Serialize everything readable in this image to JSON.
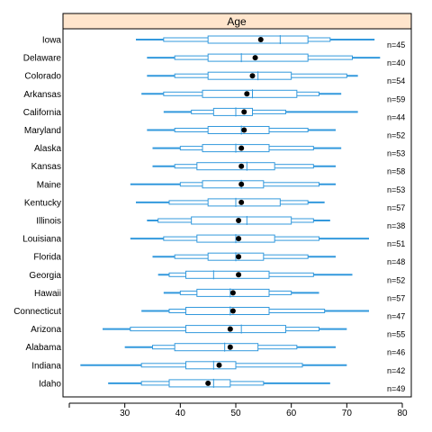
{
  "chart_data": {
    "type": "box",
    "title": "Age",
    "xlabel": "",
    "ylabel": "",
    "xlim": [
      20,
      80
    ],
    "xticks": [
      30,
      40,
      50,
      60,
      70,
      80
    ],
    "colors": {
      "strip": "#ffe5cc",
      "box": "#3399dd",
      "mean": "#000000"
    },
    "categories": [
      "Iowa",
      "Delaware",
      "Colorado",
      "Arkansas",
      "California",
      "Maryland",
      "Alaska",
      "Kansas",
      "Maine",
      "Kentucky",
      "Illinois",
      "Louisiana",
      "Florida",
      "Georgia",
      "Hawaii",
      "Connecticut",
      "Arizona",
      "Alabama",
      "Indiana",
      "Idaho"
    ],
    "n_labels": [
      "n=45",
      "n=40",
      "n=54",
      "n=59",
      "n=44",
      "n=52",
      "n=53",
      "n=58",
      "n=53",
      "n=57",
      "n=38",
      "n=51",
      "n=48",
      "n=52",
      "n=57",
      "n=47",
      "n=55",
      "n=46",
      "n=42",
      "n=49"
    ],
    "series": [
      {
        "category": "Iowa",
        "min": 32,
        "p10": 37,
        "q1": 45,
        "median": 58,
        "q3": 63,
        "p90": 67,
        "max": 75,
        "mean": 54.5
      },
      {
        "category": "Delaware",
        "min": 34,
        "p10": 39,
        "q1": 45,
        "median": 51,
        "q3": 63,
        "p90": 71,
        "max": 76,
        "mean": 53.5
      },
      {
        "category": "Colorado",
        "min": 34,
        "p10": 39,
        "q1": 45,
        "median": 54,
        "q3": 60,
        "p90": 70,
        "max": 72,
        "mean": 53
      },
      {
        "category": "Arkansas",
        "min": 33,
        "p10": 37,
        "q1": 44,
        "median": 53,
        "q3": 61,
        "p90": 65,
        "max": 69,
        "mean": 52
      },
      {
        "category": "California",
        "min": 37,
        "p10": 42,
        "q1": 46,
        "median": 50,
        "q3": 53,
        "p90": 59,
        "max": 72,
        "mean": 51.5
      },
      {
        "category": "Maryland",
        "min": 34,
        "p10": 39,
        "q1": 45,
        "median": 51,
        "q3": 56,
        "p90": 63,
        "max": 68,
        "mean": 51.5
      },
      {
        "category": "Alaska",
        "min": 35,
        "p10": 40,
        "q1": 44,
        "median": 50,
        "q3": 56,
        "p90": 64,
        "max": 69,
        "mean": 51
      },
      {
        "category": "Kansas",
        "min": 35,
        "p10": 39,
        "q1": 43,
        "median": 52,
        "q3": 57,
        "p90": 64,
        "max": 68,
        "mean": 51
      },
      {
        "category": "Maine",
        "min": 31,
        "p10": 40,
        "q1": 44,
        "median": 51,
        "q3": 55,
        "p90": 65,
        "max": 68,
        "mean": 51
      },
      {
        "category": "Kentucky",
        "min": 32,
        "p10": 38,
        "q1": 45,
        "median": 50,
        "q3": 58,
        "p90": 63,
        "max": 66,
        "mean": 51
      },
      {
        "category": "Illinois",
        "min": 34,
        "p10": 36,
        "q1": 42,
        "median": 52,
        "q3": 60,
        "p90": 64,
        "max": 67,
        "mean": 50.5
      },
      {
        "category": "Louisiana",
        "min": 31,
        "p10": 37,
        "q1": 43,
        "median": 50,
        "q3": 57,
        "p90": 65,
        "max": 74,
        "mean": 50.5
      },
      {
        "category": "Florida",
        "min": 35,
        "p10": 39,
        "q1": 45,
        "median": 50,
        "q3": 55,
        "p90": 63,
        "max": 68,
        "mean": 50.5
      },
      {
        "category": "Georgia",
        "min": 36,
        "p10": 38,
        "q1": 41,
        "median": 46,
        "q3": 56,
        "p90": 64,
        "max": 71,
        "mean": 50.5
      },
      {
        "category": "Hawaii",
        "min": 37,
        "p10": 40,
        "q1": 43,
        "median": 49,
        "q3": 56,
        "p90": 60,
        "max": 65,
        "mean": 49.5
      },
      {
        "category": "Connecticut",
        "min": 33,
        "p10": 38,
        "q1": 41,
        "median": 49,
        "q3": 56,
        "p90": 66,
        "max": 74,
        "mean": 49.5
      },
      {
        "category": "Arizona",
        "min": 26,
        "p10": 31,
        "q1": 41,
        "median": 51,
        "q3": 59,
        "p90": 65,
        "max": 70,
        "mean": 49
      },
      {
        "category": "Alabama",
        "min": 30,
        "p10": 35,
        "q1": 39,
        "median": 48,
        "q3": 54,
        "p90": 61,
        "max": 68,
        "mean": 49
      },
      {
        "category": "Indiana",
        "min": 22,
        "p10": 33,
        "q1": 41,
        "median": 46,
        "q3": 50,
        "p90": 62,
        "max": 70,
        "mean": 47
      },
      {
        "category": "Idaho",
        "min": 27,
        "p10": 33,
        "q1": 38,
        "median": 46,
        "q3": 49,
        "p90": 55,
        "max": 67,
        "mean": 45
      }
    ]
  }
}
